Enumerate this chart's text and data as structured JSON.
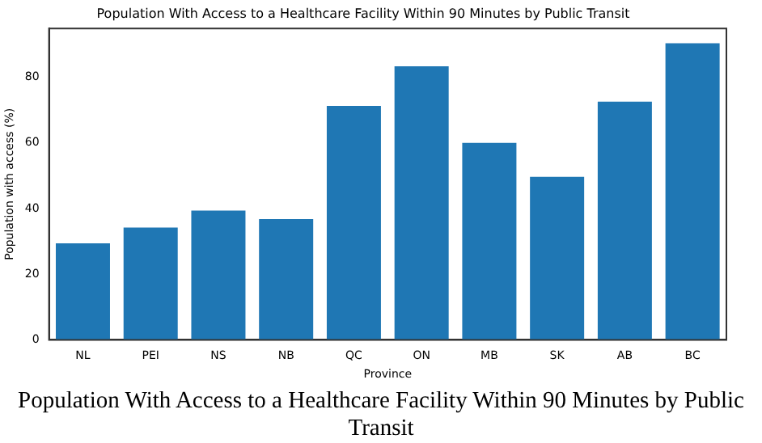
{
  "chart_data": {
    "type": "bar",
    "title": "Population With Access to a Healthcare Facility Within 90 Minutes by Public Transit",
    "xlabel": "Province",
    "ylabel": "Population with access (%)",
    "categories": [
      "NL",
      "PEI",
      "NS",
      "NB",
      "QC",
      "ON",
      "MB",
      "SK",
      "AB",
      "BC"
    ],
    "values": [
      29.4,
      34.2,
      39.4,
      36.8,
      71.3,
      83.4,
      60,
      49.7,
      72.6,
      90.4
    ],
    "color": "#1f77b4",
    "ylim": [
      0,
      94.9
    ],
    "yticks": [
      0,
      20,
      40,
      60,
      80
    ],
    "grid": false,
    "legend": false,
    "annotations": [
      "Population With Access to a Healthcare Facility Within 90 Minutes by Public Transit"
    ]
  }
}
